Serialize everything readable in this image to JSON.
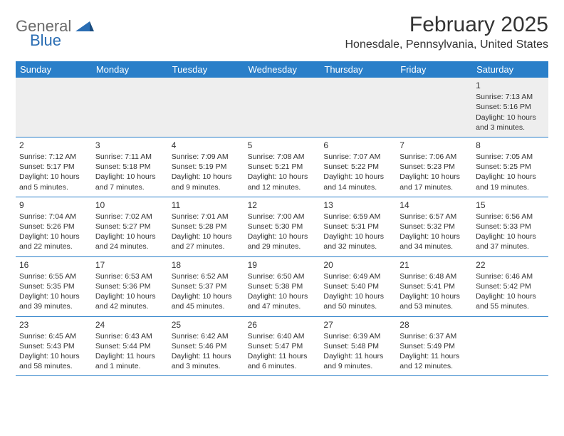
{
  "brand": {
    "part1": "General",
    "part2": "Blue"
  },
  "title": "February 2025",
  "location": "Honesdale, Pennsylvania, United States",
  "colors": {
    "header_bg": "#2a7fc9",
    "header_text": "#ffffff",
    "row_border": "#2a7fc9",
    "first_row_bg": "#eeeeee",
    "text": "#333333",
    "logo_gray": "#6b6b6b",
    "logo_blue": "#2a6db3"
  },
  "dow": [
    "Sunday",
    "Monday",
    "Tuesday",
    "Wednesday",
    "Thursday",
    "Friday",
    "Saturday"
  ],
  "weeks": [
    [
      null,
      null,
      null,
      null,
      null,
      null,
      {
        "d": "1",
        "sr": "7:13 AM",
        "ss": "5:16 PM",
        "dl": "10 hours and 3 minutes."
      }
    ],
    [
      {
        "d": "2",
        "sr": "7:12 AM",
        "ss": "5:17 PM",
        "dl": "10 hours and 5 minutes."
      },
      {
        "d": "3",
        "sr": "7:11 AM",
        "ss": "5:18 PM",
        "dl": "10 hours and 7 minutes."
      },
      {
        "d": "4",
        "sr": "7:09 AM",
        "ss": "5:19 PM",
        "dl": "10 hours and 9 minutes."
      },
      {
        "d": "5",
        "sr": "7:08 AM",
        "ss": "5:21 PM",
        "dl": "10 hours and 12 minutes."
      },
      {
        "d": "6",
        "sr": "7:07 AM",
        "ss": "5:22 PM",
        "dl": "10 hours and 14 minutes."
      },
      {
        "d": "7",
        "sr": "7:06 AM",
        "ss": "5:23 PM",
        "dl": "10 hours and 17 minutes."
      },
      {
        "d": "8",
        "sr": "7:05 AM",
        "ss": "5:25 PM",
        "dl": "10 hours and 19 minutes."
      }
    ],
    [
      {
        "d": "9",
        "sr": "7:04 AM",
        "ss": "5:26 PM",
        "dl": "10 hours and 22 minutes."
      },
      {
        "d": "10",
        "sr": "7:02 AM",
        "ss": "5:27 PM",
        "dl": "10 hours and 24 minutes."
      },
      {
        "d": "11",
        "sr": "7:01 AM",
        "ss": "5:28 PM",
        "dl": "10 hours and 27 minutes."
      },
      {
        "d": "12",
        "sr": "7:00 AM",
        "ss": "5:30 PM",
        "dl": "10 hours and 29 minutes."
      },
      {
        "d": "13",
        "sr": "6:59 AM",
        "ss": "5:31 PM",
        "dl": "10 hours and 32 minutes."
      },
      {
        "d": "14",
        "sr": "6:57 AM",
        "ss": "5:32 PM",
        "dl": "10 hours and 34 minutes."
      },
      {
        "d": "15",
        "sr": "6:56 AM",
        "ss": "5:33 PM",
        "dl": "10 hours and 37 minutes."
      }
    ],
    [
      {
        "d": "16",
        "sr": "6:55 AM",
        "ss": "5:35 PM",
        "dl": "10 hours and 39 minutes."
      },
      {
        "d": "17",
        "sr": "6:53 AM",
        "ss": "5:36 PM",
        "dl": "10 hours and 42 minutes."
      },
      {
        "d": "18",
        "sr": "6:52 AM",
        "ss": "5:37 PM",
        "dl": "10 hours and 45 minutes."
      },
      {
        "d": "19",
        "sr": "6:50 AM",
        "ss": "5:38 PM",
        "dl": "10 hours and 47 minutes."
      },
      {
        "d": "20",
        "sr": "6:49 AM",
        "ss": "5:40 PM",
        "dl": "10 hours and 50 minutes."
      },
      {
        "d": "21",
        "sr": "6:48 AM",
        "ss": "5:41 PM",
        "dl": "10 hours and 53 minutes."
      },
      {
        "d": "22",
        "sr": "6:46 AM",
        "ss": "5:42 PM",
        "dl": "10 hours and 55 minutes."
      }
    ],
    [
      {
        "d": "23",
        "sr": "6:45 AM",
        "ss": "5:43 PM",
        "dl": "10 hours and 58 minutes."
      },
      {
        "d": "24",
        "sr": "6:43 AM",
        "ss": "5:44 PM",
        "dl": "11 hours and 1 minute."
      },
      {
        "d": "25",
        "sr": "6:42 AM",
        "ss": "5:46 PM",
        "dl": "11 hours and 3 minutes."
      },
      {
        "d": "26",
        "sr": "6:40 AM",
        "ss": "5:47 PM",
        "dl": "11 hours and 6 minutes."
      },
      {
        "d": "27",
        "sr": "6:39 AM",
        "ss": "5:48 PM",
        "dl": "11 hours and 9 minutes."
      },
      {
        "d": "28",
        "sr": "6:37 AM",
        "ss": "5:49 PM",
        "dl": "11 hours and 12 minutes."
      },
      null
    ]
  ],
  "labels": {
    "sunrise": "Sunrise:",
    "sunset": "Sunset:",
    "daylight": "Daylight:"
  }
}
